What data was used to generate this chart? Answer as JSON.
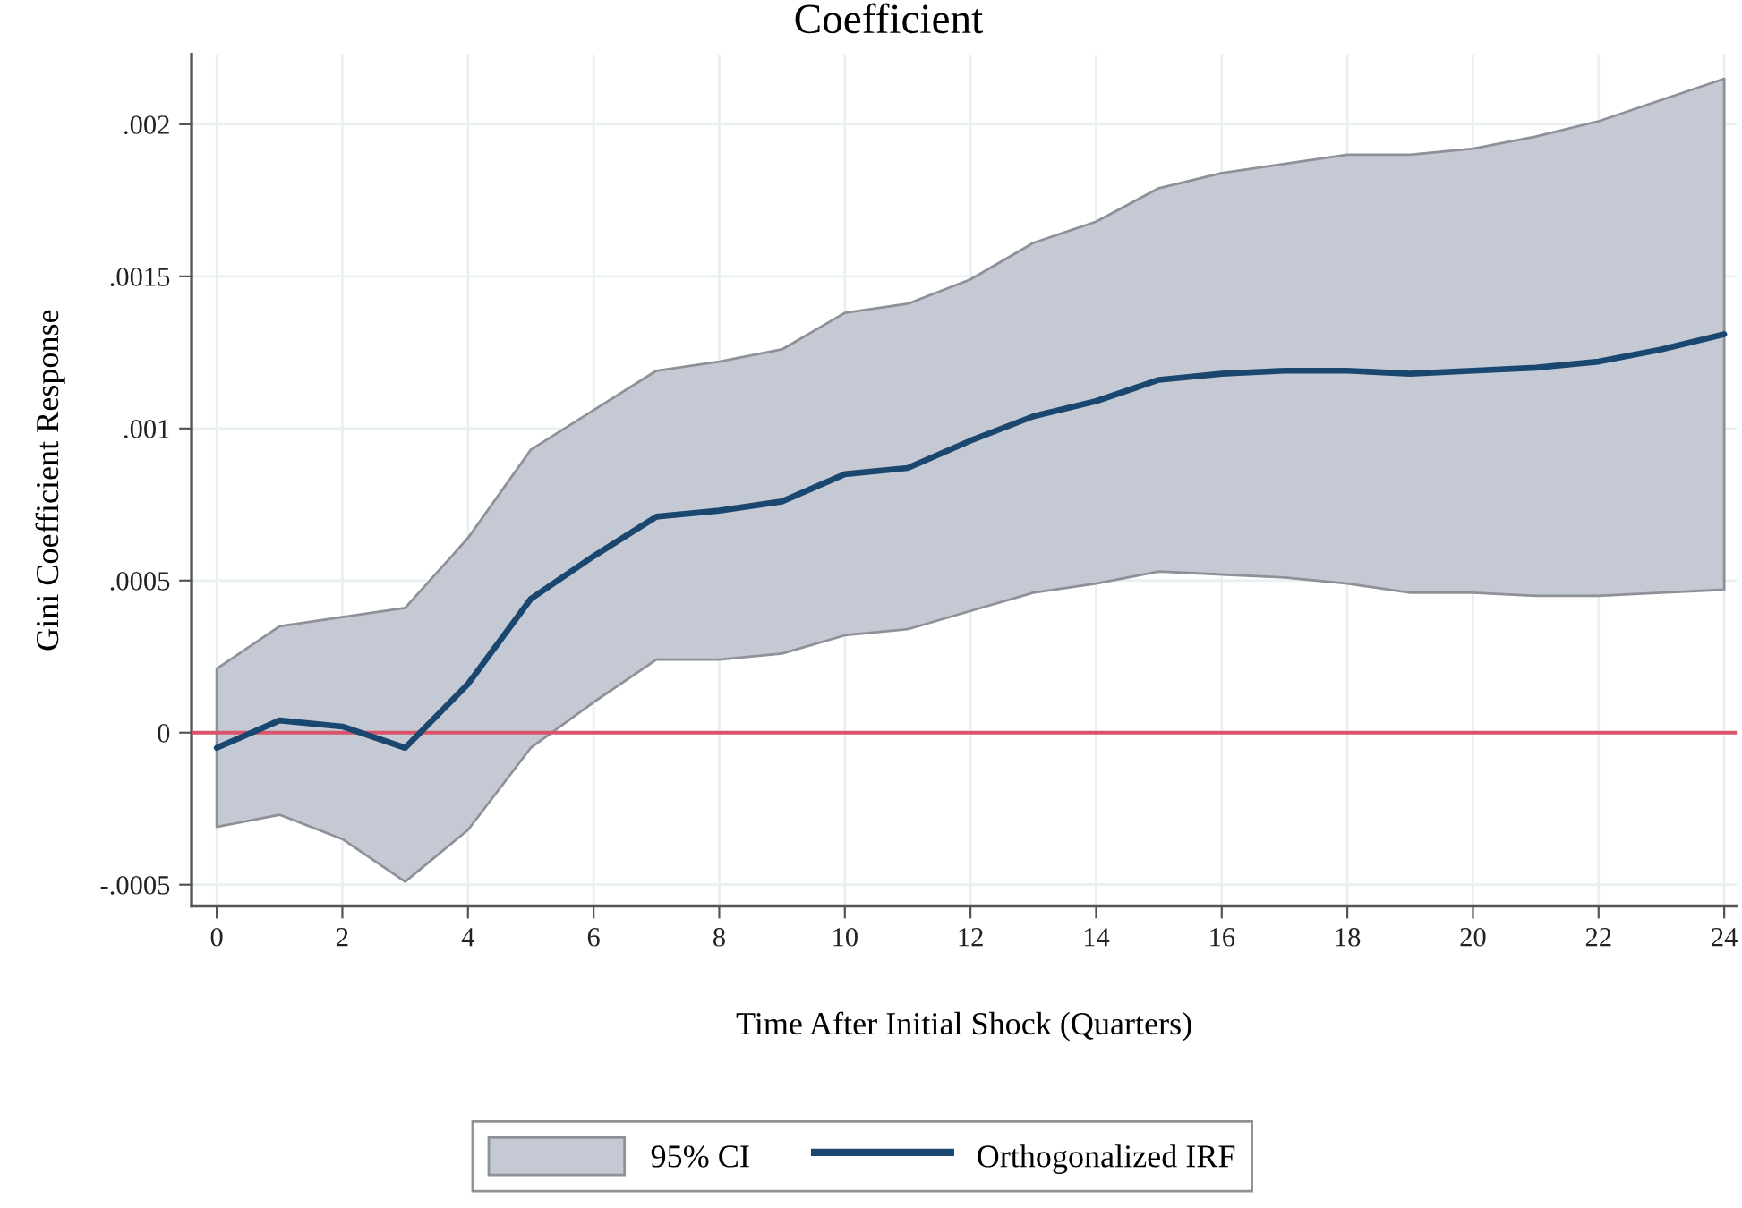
{
  "chart_data": {
    "type": "line",
    "title": "Coefficient",
    "xlabel": "Time After Initial Shock (Quarters)",
    "ylabel": "Gini Coefficient Response",
    "x": [
      0,
      1,
      2,
      3,
      4,
      5,
      6,
      7,
      8,
      9,
      10,
      11,
      12,
      13,
      14,
      15,
      16,
      17,
      18,
      19,
      20,
      21,
      22,
      23,
      24
    ],
    "series": [
      {
        "name": "95% CI",
        "type": "area",
        "color": "#c5c9d3",
        "values": [
          null,
          null,
          null,
          null,
          null,
          null,
          null,
          null,
          null,
          null,
          null,
          null,
          null,
          null,
          null,
          null,
          null,
          null,
          null,
          null,
          null,
          null,
          null,
          null,
          null
        ],
        "lower": [
          -0.00031,
          -0.00027,
          -0.00035,
          -0.00049,
          -0.00032,
          -5e-05,
          0.0001,
          0.00024,
          0.00024,
          0.00026,
          0.00032,
          0.00034,
          0.0004,
          0.00046,
          0.00049,
          0.00053,
          0.00052,
          0.00051,
          0.00049,
          0.00046,
          0.00046,
          0.00045,
          0.00045,
          0.00046,
          0.00047
        ],
        "upper": [
          0.00021,
          0.00035,
          0.00038,
          0.00041,
          0.00064,
          0.00093,
          0.00106,
          0.00119,
          0.00122,
          0.00126,
          0.00138,
          0.00141,
          0.00149,
          0.00161,
          0.00168,
          0.00179,
          0.00184,
          0.00187,
          0.0019,
          0.0019,
          0.00192,
          0.00196,
          0.00201,
          0.00208,
          0.00215
        ]
      },
      {
        "name": "Orthogonalized IRF",
        "color": "#1a476f",
        "values": [
          -5e-05,
          4e-05,
          2e-05,
          -5e-05,
          0.00016,
          0.00044,
          0.00058,
          0.00071,
          0.00073,
          0.00076,
          0.00085,
          0.00087,
          0.00096,
          0.00104,
          0.00109,
          0.00116,
          0.00118,
          0.00119,
          0.00119,
          0.00118,
          0.00119,
          0.0012,
          0.00122,
          0.00126,
          0.00131
        ]
      }
    ],
    "xlim": [
      -0.4,
      24.2
    ],
    "xticks": [
      0,
      2,
      4,
      6,
      8,
      10,
      12,
      14,
      16,
      18,
      20,
      22,
      24
    ],
    "ylim": [
      -0.00057,
      0.00223
    ],
    "yticks": [
      {
        "value": -0.0005,
        "label": "-.0005"
      },
      0,
      {
        "value": 0.0005,
        "label": ".0005"
      },
      {
        "value": 0.001,
        "label": ".001"
      },
      {
        "value": 0.0015,
        "label": ".0015"
      },
      {
        "value": 0.002,
        "label": ".002"
      }
    ],
    "ref_lines": [
      {
        "axis": "y",
        "value": 0,
        "color": "#d9546b"
      }
    ],
    "grid": true,
    "legend": "bottom"
  }
}
